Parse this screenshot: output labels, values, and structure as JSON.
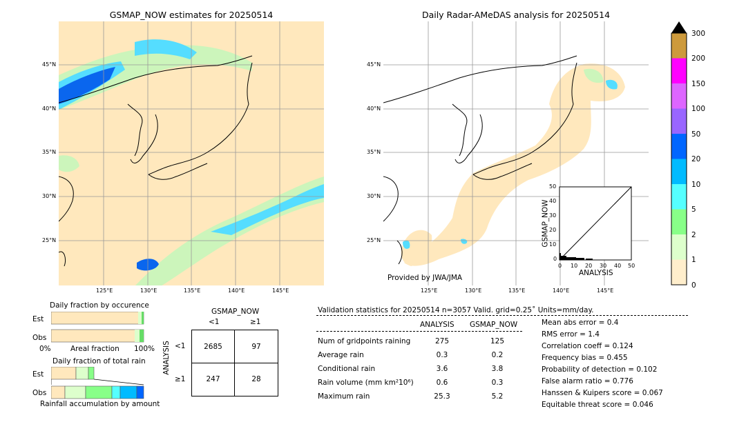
{
  "left_map": {
    "title": "GSMAP_NOW estimates for 20250514",
    "lat_labels": [
      "45°N",
      "40°N",
      "35°N",
      "30°N",
      "25°N"
    ],
    "lon_labels": [
      "125°E",
      "130°E",
      "135°E",
      "140°E",
      "145°E"
    ]
  },
  "right_map": {
    "title": "Daily Radar-AMeDAS analysis for 20250514",
    "lat_labels": [
      "45°N",
      "40°N",
      "35°N",
      "30°N",
      "25°N"
    ],
    "lon_labels": [
      "125°E",
      "130°E",
      "135°E",
      "140°E",
      "145°E"
    ],
    "credit": "Provided by JWA/JMA"
  },
  "colorbar": {
    "ticks": [
      "300",
      "200",
      "150",
      "100",
      "50",
      "20",
      "10",
      "5",
      "2",
      "1",
      "0"
    ],
    "colors": [
      "#cd9a3c",
      "#ff00ff",
      "#dd66ff",
      "#9966ff",
      "#0066ff",
      "#00bbff",
      "#55ffff",
      "#88ff88",
      "#ddffcc",
      "#ffeecc"
    ],
    "over_color": "#000000"
  },
  "scatter_inset": {
    "ylabel": "GSMAP_NOW",
    "xlabel": "ANALYSIS",
    "x_ticks": [
      "0",
      "10",
      "20",
      "30",
      "40",
      "50"
    ],
    "y_ticks": [
      "0",
      "10",
      "20",
      "30",
      "40",
      "50"
    ]
  },
  "fraction_occurrence": {
    "title": "Daily fraction by occurence",
    "rows": [
      "Est",
      "Obs"
    ],
    "axis_left": "0%",
    "axis_mid": "Areal fraction",
    "axis_right": "100%"
  },
  "fraction_total": {
    "title": "Daily fraction of total rain",
    "rows": [
      "Est",
      "Obs"
    ],
    "footer": "Rainfall accumulation by amount"
  },
  "contingency": {
    "title": "GSMAP_NOW",
    "col_labels": [
      "<1",
      "≥1"
    ],
    "row_title": "ANALYSIS",
    "row_labels": [
      "<1",
      "≥1"
    ],
    "cells": [
      [
        "2685",
        "97"
      ],
      [
        "247",
        "28"
      ]
    ]
  },
  "validation": {
    "header": "Validation statistics for 20250514  n=3057 Valid. grid=0.25˚ Units=mm/day.",
    "col_analysis": "ANALYSIS",
    "col_gsmap": "GSMAP_NOW",
    "rows": [
      {
        "label": "Num of gridpoints raining",
        "analysis": "275",
        "gsmap": "125"
      },
      {
        "label": "Average rain",
        "analysis": "0.3",
        "gsmap": "0.2"
      },
      {
        "label": "Conditional rain",
        "analysis": "3.6",
        "gsmap": "3.8"
      },
      {
        "label": "Rain volume (mm km²10⁶)",
        "analysis": "0.6",
        "gsmap": "0.3"
      },
      {
        "label": "Maximum rain",
        "analysis": "25.3",
        "gsmap": "5.2"
      }
    ],
    "scores": [
      "Mean abs error =    0.4",
      "RMS error =    1.4",
      "Correlation coeff =  0.124",
      "Frequency bias =  0.455",
      "Probability of detection =  0.102",
      "False alarm ratio =  0.776",
      "Hanssen & Kuipers score =  0.067",
      "Equitable threat score =  0.046"
    ]
  }
}
